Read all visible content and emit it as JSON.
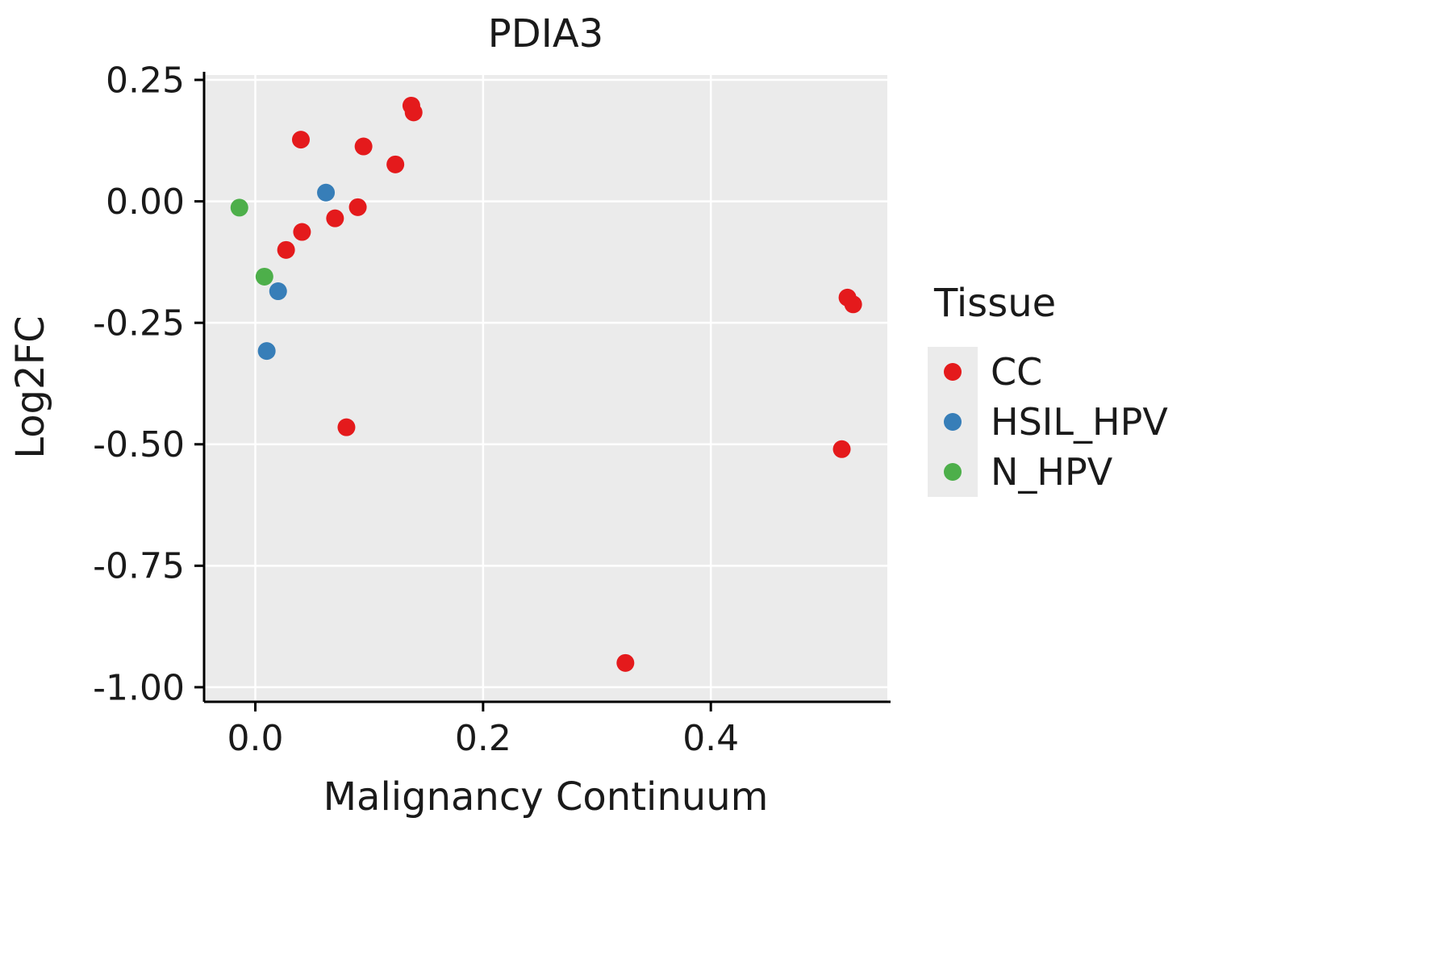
{
  "title": "PDIA3",
  "axis_titles": {
    "x": "Malignancy Continuum",
    "y": "Log2FC"
  },
  "legend": {
    "title": "Tissue",
    "items": [
      {
        "label": "CC",
        "color": "#E41A1C"
      },
      {
        "label": "HSIL_HPV",
        "color": "#377EB8"
      },
      {
        "label": "N_HPV",
        "color": "#4DAF4A"
      }
    ]
  },
  "colors": {
    "panel_background": "#EBEBEB",
    "gridline": "#FFFFFF",
    "axis_line": "#000000",
    "text": "#1a1a1a"
  },
  "chart_data": {
    "type": "scatter",
    "title": "PDIA3",
    "xlabel": "Malignancy Continuum",
    "ylabel": "Log2FC",
    "xlim": [
      -0.045,
      0.555
    ],
    "ylim": [
      -1.03,
      0.26
    ],
    "x_ticks": [
      0.0,
      0.2,
      0.4
    ],
    "x_tick_labels": [
      "0.0",
      "0.2",
      "0.4"
    ],
    "y_ticks": [
      0.25,
      0.0,
      -0.25,
      -0.5,
      -0.75,
      -1.0
    ],
    "y_tick_labels": [
      "0.25",
      "0.00",
      "-0.25",
      "-0.50",
      "-0.75",
      "-1.00"
    ],
    "grid": "major",
    "legend_position": "right",
    "series": [
      {
        "name": "CC",
        "color": "#E41A1C",
        "points": [
          [
            0.137,
            0.197
          ],
          [
            0.139,
            0.183
          ],
          [
            0.04,
            0.127
          ],
          [
            0.095,
            0.113
          ],
          [
            0.123,
            0.076
          ],
          [
            0.09,
            -0.012
          ],
          [
            0.07,
            -0.035
          ],
          [
            0.041,
            -0.063
          ],
          [
            0.027,
            -0.1
          ],
          [
            0.08,
            -0.465
          ],
          [
            0.52,
            -0.198
          ],
          [
            0.525,
            -0.212
          ],
          [
            0.515,
            -0.51
          ],
          [
            0.325,
            -0.95
          ]
        ]
      },
      {
        "name": "HSIL_HPV",
        "color": "#377EB8",
        "points": [
          [
            0.062,
            0.018
          ],
          [
            0.02,
            -0.185
          ],
          [
            0.01,
            -0.308
          ]
        ]
      },
      {
        "name": "N_HPV",
        "color": "#4DAF4A",
        "points": [
          [
            -0.014,
            -0.013
          ],
          [
            0.008,
            -0.155
          ]
        ]
      }
    ]
  }
}
